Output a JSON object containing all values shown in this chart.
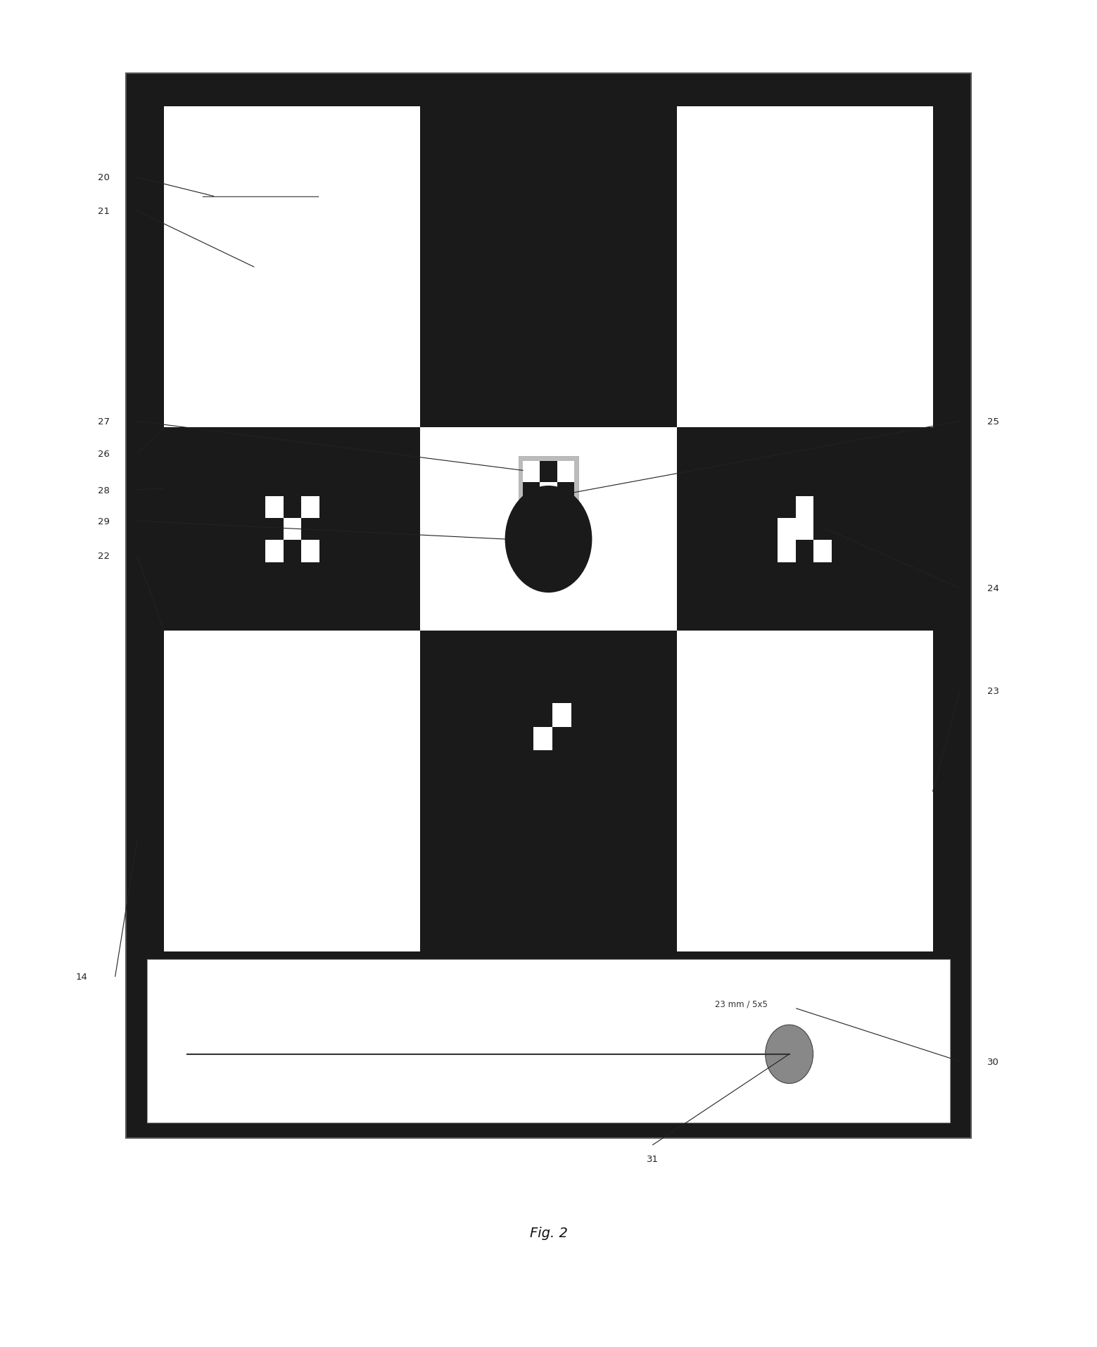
{
  "fig_width": 15.59,
  "fig_height": 19.15,
  "bg_color": "#ffffff",
  "dark_color": "#1a1a1a",
  "white_color": "#ffffff",
  "caption": "Fig. 2",
  "label_text": "23 mm / 5x5"
}
